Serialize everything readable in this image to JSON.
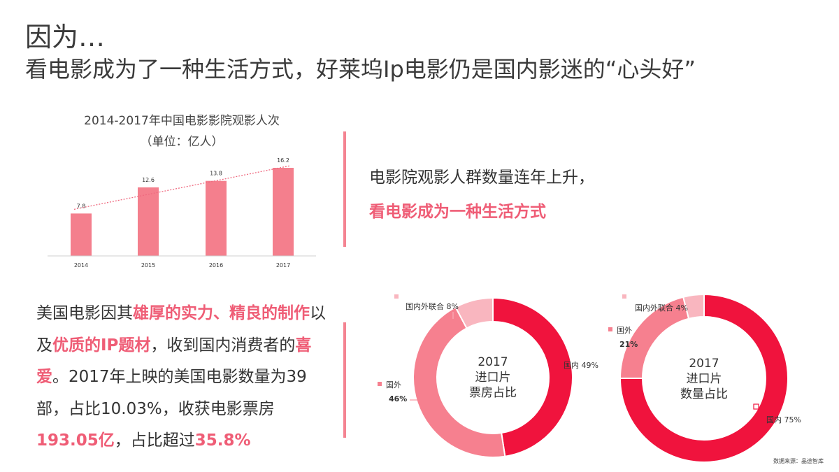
{
  "header": {
    "title": "因为…",
    "subtitle": "看电影成为了一种生活方式，好莱坞Ip电影仍是国内影迷的“心头好”"
  },
  "bar_chart_title": "2014-2017年中国电影影院观影人次",
  "bar_chart_unit": "（单位：亿人）",
  "statement": {
    "line1": "电影院观影人群数量连年上升，",
    "line2": "看电影成为一种生活方式"
  },
  "paragraph": {
    "p1": "美国电影因其",
    "h1": "雄厚的实力、精良的制作",
    "p2": "以及",
    "h2": "优质的IP题材",
    "p3": "，收到国内消费者的",
    "h3": "喜爱",
    "p4": "。2017年上映的美国电影数量为39部，占比10.03%，收获电影票房",
    "h4": "193.05亿",
    "p5": "，占比超过",
    "h5": "35.8%"
  },
  "donut1": {
    "center_line1": "2017",
    "center_line2": "进口片",
    "center_line3": "票房占比",
    "label_joint": "国内外联合 8%",
    "label_foreign_name": "国外",
    "label_foreign_value": "46%",
    "label_domestic": "国内 49%"
  },
  "donut2": {
    "center_line1": "2017",
    "center_line2": "进口片",
    "center_line3": "数量占比",
    "label_joint": "国内外联合 4%",
    "label_foreign_name": "国外",
    "label_foreign_value": "21%",
    "label_domestic": "国内 75%"
  },
  "source": "数据来源：晶途智库",
  "colors": {
    "bar": "#f47f8d",
    "trend": "#ef6a80",
    "highlight": "#ef5d76",
    "domestic": "#f0133d",
    "foreign": "#f6808f",
    "joint": "#f9b6bf"
  },
  "chart_data": [
    {
      "type": "bar",
      "title": "2014-2017年中国电影影院观影人次",
      "subtitle": "（单位：亿人）",
      "categories": [
        "2014",
        "2015",
        "2016",
        "2017"
      ],
      "values": [
        7.8,
        12.6,
        13.8,
        16.2
      ],
      "ylim": [
        0,
        18
      ],
      "trendline": true,
      "grid": false
    },
    {
      "type": "pie",
      "title": "2017 进口片 票房占比",
      "slices": [
        {
          "label": "国内",
          "value": 49
        },
        {
          "label": "国外",
          "value": 46
        },
        {
          "label": "国内外联合",
          "value": 8
        }
      ]
    },
    {
      "type": "pie",
      "title": "2017 进口片 数量占比",
      "slices": [
        {
          "label": "国内",
          "value": 75
        },
        {
          "label": "国外",
          "value": 21
        },
        {
          "label": "国内外联合",
          "value": 4
        }
      ]
    }
  ]
}
